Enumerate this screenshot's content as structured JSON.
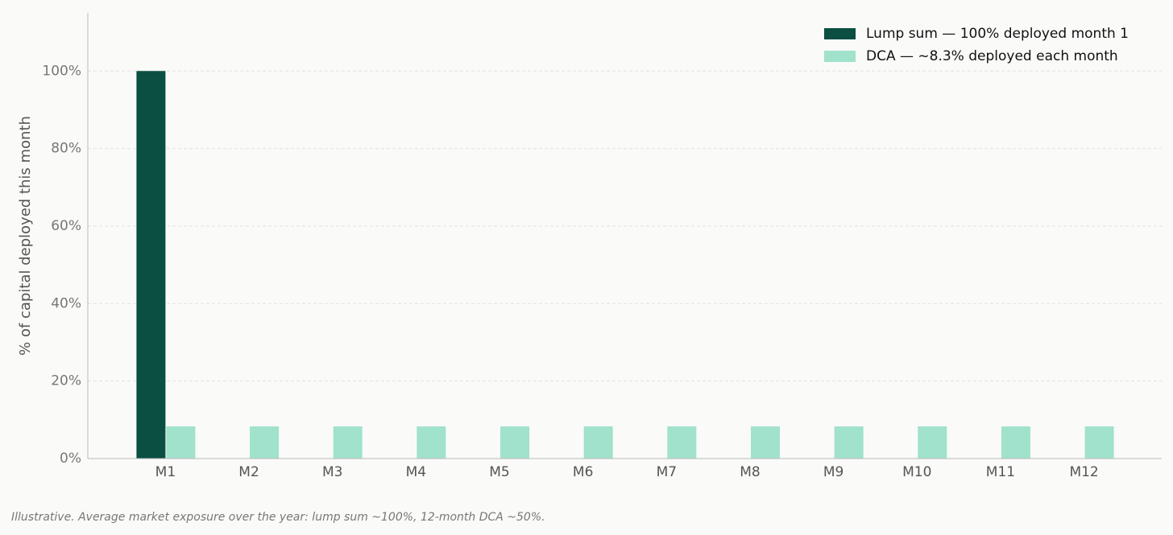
{
  "chart_data": {
    "type": "bar",
    "ylabel": "% of capital deployed this month",
    "footnote": "Illustrative. Average market exposure over the year: lump sum ~100%, 12-month DCA ~50%.",
    "categories": [
      "M1",
      "M2",
      "M3",
      "M4",
      "M5",
      "M6",
      "M7",
      "M8",
      "M9",
      "M10",
      "M11",
      "M12"
    ],
    "series": [
      {
        "name": "Lump sum — 100% deployed month 1",
        "color": "#0a4f42",
        "values": [
          100,
          0,
          0,
          0,
          0,
          0,
          0,
          0,
          0,
          0,
          0,
          0
        ]
      },
      {
        "name": "DCA — ~8.3% deployed each month",
        "color": "#a0e2cc",
        "values": [
          8.3,
          8.3,
          8.3,
          8.3,
          8.3,
          8.3,
          8.3,
          8.3,
          8.3,
          8.3,
          8.3,
          8.3
        ]
      }
    ],
    "ylim": [
      0,
      115
    ],
    "yticks": [
      {
        "value": 0,
        "label": "0%"
      },
      {
        "value": 20,
        "label": "20%"
      },
      {
        "value": 40,
        "label": "40%"
      },
      {
        "value": 60,
        "label": "60%"
      },
      {
        "value": 80,
        "label": "80%"
      },
      {
        "value": 100,
        "label": "100%"
      }
    ],
    "grid": true,
    "legend": "upper right"
  }
}
